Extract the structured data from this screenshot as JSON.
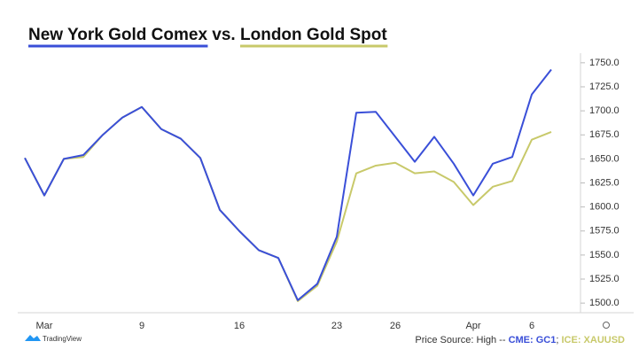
{
  "chart_data": {
    "type": "line",
    "title_middle": "vs.",
    "categories": [
      null,
      "Mar",
      null,
      null,
      null,
      null,
      "9",
      null,
      null,
      null,
      null,
      "16",
      null,
      null,
      null,
      null,
      "23",
      null,
      null,
      "26",
      null,
      null,
      null,
      "Apr",
      null,
      null,
      "6",
      null
    ],
    "series": [
      {
        "name": "New York Gold Comex",
        "color": "#3a4fd8",
        "source": "CME: GC1",
        "values": [
          1651,
          1612,
          1650,
          1654,
          1675,
          1693,
          1704,
          1681,
          1671,
          1651,
          1597,
          1575,
          1555,
          1547,
          1503,
          1520,
          1569,
          1698,
          1699,
          1673,
          1647,
          1673,
          1645,
          1612,
          1645,
          1652,
          1717,
          1743
        ]
      },
      {
        "name": "London Gold Spot",
        "color": "#c8c96a",
        "source": "ICE: XAUUSD",
        "values": [
          1651,
          1612,
          1650,
          1652,
          1675,
          1693,
          1704,
          1681,
          1671,
          1651,
          1597,
          1575,
          1555,
          1547,
          1502,
          1518,
          1564,
          1635,
          1643,
          1646,
          1635,
          1637,
          1626,
          1602,
          1621,
          1627,
          1670,
          1678
        ]
      }
    ],
    "ylim": [
      1490,
      1760
    ],
    "yticks": [
      {
        "value": 1500,
        "label": "1500.0"
      },
      {
        "value": 1525,
        "label": "1525.0"
      },
      {
        "value": 1550,
        "label": "1550.0"
      },
      {
        "value": 1575,
        "label": "1575.0"
      },
      {
        "value": 1600,
        "label": "1600.0"
      },
      {
        "value": 1625,
        "label": "1625.0"
      },
      {
        "value": 1650,
        "label": "1650.0"
      },
      {
        "value": 1675,
        "label": "1675.0"
      },
      {
        "value": 1700,
        "label": "1700.0"
      },
      {
        "value": 1725,
        "label": "1725.0"
      },
      {
        "value": 1750,
        "label": "1750.0"
      }
    ],
    "source_label": "Price Source: High --",
    "source_separator": ";",
    "logo_text": "TradingView"
  }
}
